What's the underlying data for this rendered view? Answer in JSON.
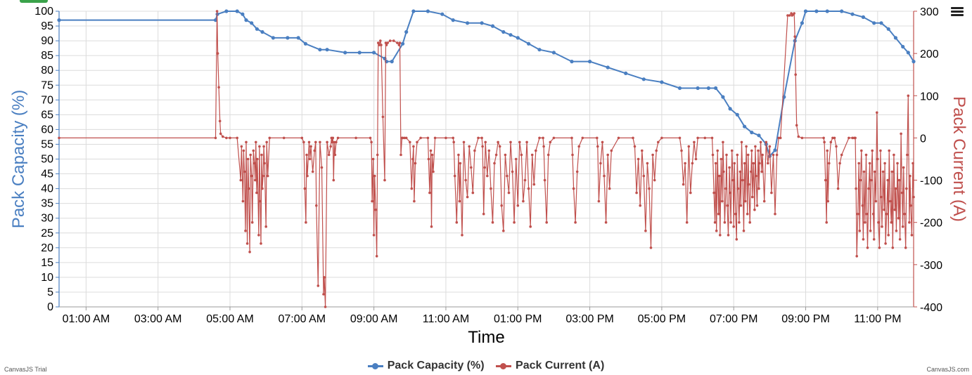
{
  "chart_data": {
    "type": "line",
    "xlabel": "Time",
    "x_ticks": [
      "01:00 AM",
      "03:00 AM",
      "05:00 AM",
      "07:00 AM",
      "09:00 AM",
      "11:00 AM",
      "01:00 PM",
      "03:00 PM",
      "05:00 PM",
      "07:00 PM",
      "09:00 PM",
      "11:00 PM"
    ],
    "xlim_hours": [
      0.25,
      24.0
    ],
    "y_left": {
      "label": "Pack Capacity (%)",
      "range": [
        0,
        100
      ],
      "ticks": [
        0,
        5,
        10,
        15,
        20,
        25,
        30,
        35,
        40,
        45,
        50,
        55,
        60,
        65,
        70,
        75,
        80,
        85,
        90,
        95,
        100
      ],
      "color": "#4a7fc1"
    },
    "y_right": {
      "label": "Pack Current (A)",
      "range": [
        -400,
        300
      ],
      "ticks": [
        300,
        200,
        100,
        0,
        -100,
        -200,
        -300,
        -400
      ],
      "color": "#c0504d"
    },
    "grid": true,
    "legend_position": "bottom-center",
    "series": [
      {
        "name": "Pack Capacity (%)",
        "axis": "left",
        "color": "#4a7fc1",
        "x": [
          0.25,
          4.6,
          4.65,
          4.9,
          5.2,
          5.35,
          5.45,
          5.6,
          5.75,
          5.9,
          6.2,
          6.6,
          6.9,
          7.1,
          7.5,
          7.7,
          8.2,
          8.6,
          9.0,
          9.3,
          9.35,
          9.5,
          9.8,
          9.9,
          10.1,
          10.5,
          10.9,
          11.2,
          11.6,
          12.0,
          12.3,
          12.6,
          12.8,
          13.0,
          13.3,
          13.6,
          14.0,
          14.5,
          15.0,
          15.5,
          16.0,
          16.5,
          17.0,
          17.5,
          18.0,
          18.3,
          18.5,
          18.7,
          18.9,
          19.1,
          19.3,
          19.5,
          19.7,
          19.9,
          20.0,
          20.15,
          20.4,
          20.7,
          20.9,
          21.0,
          21.3,
          21.6,
          22.0,
          22.3,
          22.6,
          22.9,
          23.1,
          23.3,
          23.5,
          23.7,
          23.85,
          24.0
        ],
        "values": [
          97,
          97,
          99,
          100,
          100,
          99,
          97,
          96,
          94,
          93,
          91,
          91,
          91,
          89,
          87,
          87,
          86,
          86,
          86,
          84,
          83,
          83,
          89,
          93,
          100,
          100,
          99,
          97,
          96,
          96,
          95,
          93,
          92,
          91,
          89,
          87,
          86,
          83,
          83,
          81,
          79,
          77,
          76,
          74,
          74,
          74,
          74,
          71,
          67,
          65,
          61,
          59,
          58,
          55,
          51,
          53,
          71,
          90,
          96,
          100,
          100,
          100,
          100,
          99,
          98,
          96,
          96,
          94,
          91,
          88,
          86,
          83
        ]
      },
      {
        "name": "Pack Current (A)",
        "axis": "right",
        "color": "#c0504d",
        "x": [
          0.25,
          4.6,
          4.64,
          4.66,
          4.69,
          4.72,
          4.74,
          4.8,
          4.9,
          5.0,
          5.2,
          5.3,
          5.32,
          5.36,
          5.38,
          5.4,
          5.43,
          5.45,
          5.48,
          5.5,
          5.52,
          5.55,
          5.57,
          5.6,
          5.62,
          5.65,
          5.68,
          5.7,
          5.72,
          5.74,
          5.76,
          5.8,
          5.82,
          5.84,
          5.86,
          5.88,
          5.9,
          5.92,
          5.94,
          5.96,
          6.0,
          6.02,
          6.05,
          6.1,
          6.5,
          7.0,
          7.05,
          7.08,
          7.11,
          7.13,
          7.15,
          7.2,
          7.22,
          7.25,
          7.3,
          7.35,
          7.38,
          7.4,
          7.45,
          7.5,
          7.55,
          7.6,
          7.62,
          7.65,
          7.7,
          7.75,
          7.8,
          7.82,
          7.84,
          7.86,
          7.88,
          7.9,
          7.92,
          7.95,
          8.0,
          8.5,
          8.9,
          8.93,
          8.95,
          8.98,
          9.0,
          9.02,
          9.05,
          9.08,
          9.1,
          9.12,
          9.15,
          9.18,
          9.2,
          9.25,
          9.3,
          9.33,
          9.35,
          9.38,
          9.45,
          9.55,
          9.65,
          9.7,
          9.72,
          9.75,
          9.78,
          9.8,
          9.85,
          9.9,
          10.0,
          10.05,
          10.08,
          10.1,
          10.12,
          10.15,
          10.2,
          10.3,
          10.5,
          10.52,
          10.55,
          10.58,
          10.6,
          10.62,
          10.65,
          10.7,
          11.0,
          11.2,
          11.22,
          11.25,
          11.3,
          11.35,
          11.38,
          11.4,
          11.45,
          11.5,
          11.55,
          11.6,
          11.65,
          11.7,
          11.75,
          11.8,
          11.9,
          12.0,
          12.02,
          12.05,
          12.08,
          12.1,
          12.15,
          12.2,
          12.25,
          12.3,
          12.35,
          12.4,
          12.45,
          12.5,
          12.55,
          12.6,
          12.65,
          12.7,
          12.75,
          12.8,
          12.85,
          12.9,
          12.95,
          13.0,
          13.05,
          13.1,
          13.15,
          13.2,
          13.25,
          13.3,
          13.35,
          13.4,
          13.45,
          13.5,
          13.6,
          13.7,
          13.72,
          13.75,
          13.8,
          13.85,
          13.9,
          14.0,
          14.5,
          14.52,
          14.55,
          14.6,
          14.65,
          14.7,
          14.8,
          15.2,
          15.22,
          15.25,
          15.3,
          15.35,
          15.4,
          15.45,
          15.5,
          15.55,
          15.6,
          15.8,
          16.2,
          16.25,
          16.3,
          16.35,
          16.4,
          16.45,
          16.5,
          16.55,
          16.6,
          16.65,
          16.7,
          16.75,
          16.8,
          16.85,
          16.9,
          17.0,
          17.5,
          17.55,
          17.6,
          17.65,
          17.7,
          17.75,
          17.8,
          17.85,
          17.9,
          17.95,
          18.0,
          18.2,
          18.4,
          18.42,
          18.45,
          18.48,
          18.5,
          18.52,
          18.55,
          18.58,
          18.6,
          18.62,
          18.65,
          18.68,
          18.7,
          18.72,
          18.75,
          18.78,
          18.8,
          18.82,
          18.85,
          18.88,
          18.9,
          18.92,
          18.95,
          18.98,
          19.0,
          19.02,
          19.05,
          19.08,
          19.1,
          19.12,
          19.15,
          19.18,
          19.2,
          19.22,
          19.25,
          19.28,
          19.3,
          19.32,
          19.35,
          19.38,
          19.4,
          19.42,
          19.45,
          19.48,
          19.5,
          19.52,
          19.55,
          19.58,
          19.6,
          19.62,
          19.65,
          19.68,
          19.7,
          19.72,
          19.75,
          19.78,
          19.8,
          19.85,
          19.9,
          19.95,
          20.0,
          20.05,
          20.1,
          20.15,
          20.2,
          20.25,
          20.3,
          20.5,
          20.55,
          20.6,
          20.62,
          20.65,
          20.68,
          20.7,
          20.72,
          20.75,
          20.8,
          20.9,
          21.5,
          21.52,
          21.55,
          21.58,
          21.6,
          21.62,
          21.65,
          21.7,
          21.75,
          21.8,
          21.85,
          21.9,
          21.95,
          22.0,
          22.2,
          22.3,
          22.35,
          22.38,
          22.4,
          22.42,
          22.45,
          22.48,
          22.5,
          22.52,
          22.55,
          22.58,
          22.6,
          22.62,
          22.65,
          22.68,
          22.7,
          22.72,
          22.75,
          22.78,
          22.8,
          22.82,
          22.85,
          22.88,
          22.9,
          22.92,
          22.95,
          22.98,
          23.0,
          23.02,
          23.05,
          23.08,
          23.1,
          23.12,
          23.15,
          23.18,
          23.2,
          23.22,
          23.25,
          23.28,
          23.3,
          23.32,
          23.35,
          23.38,
          23.4,
          23.42,
          23.45,
          23.48,
          23.5,
          23.52,
          23.55,
          23.58,
          23.6,
          23.62,
          23.65,
          23.68,
          23.7,
          23.72,
          23.75,
          23.78,
          23.8,
          23.82,
          23.85,
          23.88,
          23.9,
          23.92,
          23.95,
          23.98,
          24.0
        ],
        "values": [
          0,
          0,
          300,
          200,
          120,
          40,
          10,
          3,
          0,
          0,
          0,
          -100,
          -20,
          -150,
          -30,
          -80,
          -220,
          -10,
          -250,
          -50,
          -120,
          -270,
          -40,
          -90,
          -200,
          -30,
          -60,
          -100,
          -10,
          -130,
          -50,
          -230,
          -20,
          -150,
          -250,
          -40,
          -120,
          -90,
          -20,
          -60,
          -210,
          -10,
          -90,
          0,
          0,
          0,
          -10,
          -120,
          -200,
          -40,
          -90,
          -10,
          -50,
          -20,
          -80,
          -30,
          -10,
          -160,
          -350,
          -10,
          -70,
          -370,
          -330,
          -450,
          -10,
          -40,
          -20,
          0,
          -10,
          0,
          -100,
          -10,
          -40,
          -10,
          0,
          0,
          0,
          -10,
          -150,
          -50,
          -230,
          -90,
          -170,
          -280,
          -40,
          225,
          220,
          230,
          220,
          50,
          -100,
          225,
          220,
          225,
          230,
          230,
          225,
          220,
          225,
          -40,
          0,
          0,
          0,
          0,
          -10,
          -120,
          -50,
          -20,
          -150,
          -60,
          -10,
          0,
          0,
          -50,
          -130,
          -30,
          -210,
          -40,
          -80,
          0,
          0,
          0,
          -10,
          -90,
          -200,
          -40,
          -150,
          -60,
          -230,
          -10,
          -100,
          -140,
          -20,
          -70,
          -130,
          -30,
          0,
          0,
          -20,
          -180,
          -70,
          -10,
          -90,
          -30,
          -120,
          -200,
          -60,
          -40,
          -10,
          -20,
          -160,
          -220,
          -40,
          -90,
          -130,
          -10,
          -80,
          -200,
          -50,
          -160,
          -10,
          -40,
          -150,
          -100,
          -10,
          -120,
          -210,
          -40,
          -110,
          -30,
          0,
          0,
          -20,
          -100,
          -200,
          -40,
          -10,
          0,
          0,
          -40,
          -120,
          -200,
          -80,
          -20,
          0,
          0,
          -20,
          -150,
          -60,
          -10,
          -90,
          -200,
          -40,
          -120,
          -30,
          0,
          0,
          -20,
          -130,
          -50,
          -160,
          -30,
          -90,
          -220,
          -60,
          -120,
          -260,
          -40,
          -100,
          -30,
          -10,
          0,
          0,
          -30,
          -110,
          -60,
          -200,
          -20,
          -130,
          -60,
          -10,
          -50,
          0,
          0,
          0,
          -40,
          -130,
          -200,
          -60,
          -220,
          -30,
          -180,
          -90,
          -230,
          -50,
          -150,
          -10,
          -80,
          -200,
          -120,
          -40,
          -160,
          -230,
          -70,
          -130,
          -200,
          -30,
          -100,
          -210,
          -60,
          -180,
          -240,
          -40,
          -120,
          -200,
          -80,
          -160,
          -10,
          -100,
          -220,
          -60,
          -150,
          -20,
          -180,
          -40,
          -110,
          -200,
          -80,
          -30,
          -140,
          -60,
          -170,
          -20,
          -90,
          -160,
          -30,
          -120,
          -60,
          -10,
          -80,
          -40,
          -150,
          -10,
          -60,
          -20,
          -130,
          -40,
          -180,
          -40,
          0,
          0,
          290,
          290,
          295,
          290,
          292,
          295,
          240,
          150,
          30,
          3,
          0,
          0,
          -10,
          -100,
          -200,
          -30,
          -150,
          -60,
          -10,
          0,
          0,
          -20,
          -120,
          -60,
          -40,
          0,
          0,
          0,
          0,
          -120,
          -280,
          -180,
          -60,
          -220,
          -100,
          -30,
          -160,
          -240,
          -80,
          -200,
          -40,
          -180,
          -260,
          -120,
          -60,
          -220,
          -100,
          -30,
          -180,
          -240,
          -80,
          -150,
          60,
          -50,
          -200,
          -260,
          -30,
          -140,
          -210,
          -80,
          -170,
          -60,
          -250,
          -180,
          -100,
          -230,
          -30,
          -150,
          -200,
          -80,
          -260,
          -40,
          -170,
          -120,
          -220,
          -60,
          -190,
          -100,
          -240,
          10,
          -130,
          -210,
          -70,
          -180,
          -260,
          -120,
          -40,
          100,
          -200,
          -90,
          -160,
          -230,
          -60,
          -140
        ]
      }
    ]
  },
  "legend": {
    "capacity_label": "Pack Capacity (%)",
    "current_label": "Pack Current (A)"
  },
  "credits": {
    "left": "CanvasJS Trial",
    "right": "CanvasJS.com"
  },
  "menu_icon": "hamburger-menu-icon"
}
